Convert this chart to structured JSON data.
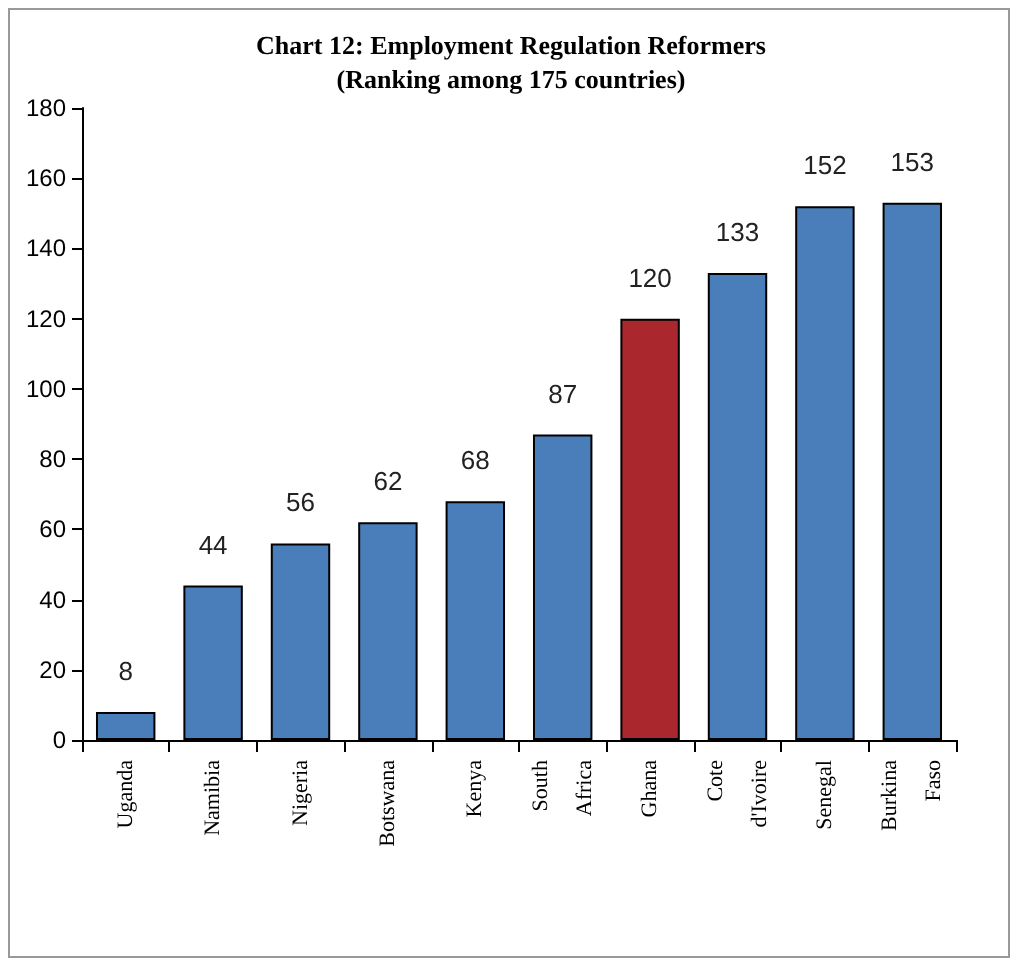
{
  "chart_data": {
    "type": "bar",
    "title": "Chart 12: Employment Regulation Reformers",
    "subtitle": "(Ranking among 175 countries)",
    "categories": [
      "Uganda",
      "Namibia",
      "Nigeria",
      "Botswana",
      "Kenya",
      "South Africa",
      "Ghana",
      "Cote d'Ivoire",
      "Senegal",
      "Burkina Faso"
    ],
    "values": [
      8,
      44,
      56,
      62,
      68,
      87,
      120,
      133,
      152,
      153
    ],
    "colors": [
      "#4a7ebb",
      "#4a7ebb",
      "#4a7ebb",
      "#4a7ebb",
      "#4a7ebb",
      "#4a7ebb",
      "#a9272d",
      "#4a7ebb",
      "#4a7ebb",
      "#4a7ebb"
    ],
    "ylim": [
      0,
      180
    ],
    "yticks": [
      0,
      20,
      40,
      60,
      80,
      100,
      120,
      140,
      160,
      180
    ],
    "grid": false,
    "data_labels": true
  }
}
